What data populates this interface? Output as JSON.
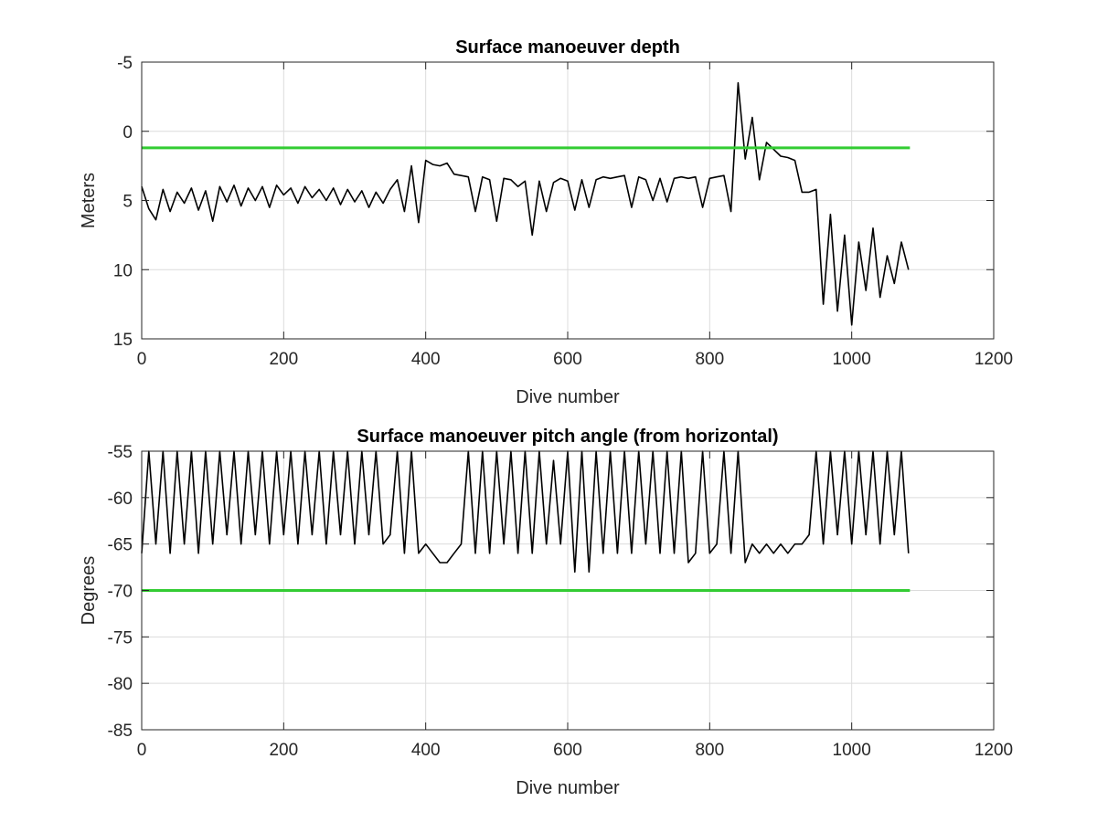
{
  "chart_data": [
    {
      "type": "line",
      "title": "Surface manoeuver depth",
      "xlabel": "Dive number",
      "ylabel": "Meters",
      "xlim": [
        0,
        1200
      ],
      "ylim": [
        -5,
        15
      ],
      "y_reversed": true,
      "xticks": [
        0,
        200,
        400,
        600,
        800,
        1000,
        1200
      ],
      "yticks": [
        -5,
        0,
        5,
        10,
        15
      ],
      "grid": true,
      "limit_line": {
        "y": 1.2,
        "x_range": [
          0,
          1082
        ],
        "color": "#33cc33"
      },
      "series": [
        {
          "color": "#000000",
          "x": [
            0,
            10,
            20,
            30,
            40,
            50,
            60,
            70,
            80,
            90,
            100,
            110,
            120,
            130,
            140,
            150,
            160,
            170,
            180,
            190,
            200,
            210,
            220,
            230,
            240,
            250,
            260,
            270,
            280,
            290,
            300,
            310,
            320,
            330,
            340,
            350,
            360,
            370,
            380,
            390,
            400,
            410,
            420,
            430,
            440,
            450,
            460,
            470,
            480,
            490,
            500,
            510,
            520,
            530,
            540,
            550,
            560,
            570,
            580,
            590,
            600,
            610,
            620,
            630,
            640,
            650,
            660,
            670,
            680,
            690,
            700,
            710,
            720,
            730,
            740,
            750,
            760,
            770,
            780,
            790,
            800,
            810,
            820,
            830,
            840,
            850,
            860,
            870,
            880,
            890,
            900,
            910,
            920,
            930,
            940,
            950,
            960,
            970,
            980,
            990,
            1000,
            1010,
            1020,
            1030,
            1040,
            1050,
            1060,
            1070,
            1080
          ],
          "y": [
            4.0,
            5.6,
            6.4,
            4.2,
            5.8,
            4.4,
            5.2,
            4.1,
            5.7,
            4.3,
            6.5,
            4.0,
            5.1,
            3.9,
            5.4,
            4.1,
            5.0,
            4.0,
            5.5,
            3.9,
            4.6,
            4.1,
            5.2,
            4.0,
            4.8,
            4.2,
            5.0,
            4.1,
            5.3,
            4.2,
            5.1,
            4.3,
            5.5,
            4.4,
            5.2,
            4.2,
            3.5,
            5.8,
            2.5,
            6.6,
            2.1,
            2.4,
            2.5,
            2.3,
            3.1,
            3.2,
            3.3,
            5.8,
            3.3,
            3.5,
            6.5,
            3.4,
            3.5,
            4.0,
            3.6,
            7.5,
            3.6,
            5.8,
            3.7,
            3.4,
            3.6,
            5.7,
            3.5,
            5.5,
            3.5,
            3.3,
            3.4,
            3.3,
            3.2,
            5.5,
            3.3,
            3.5,
            5.0,
            3.4,
            5.1,
            3.4,
            3.3,
            3.4,
            3.3,
            5.5,
            3.4,
            3.3,
            3.2,
            5.8,
            -3.5,
            2.0,
            -1.0,
            3.5,
            0.8,
            1.3,
            1.8,
            1.9,
            2.1,
            4.4,
            4.4,
            4.2,
            12.5,
            6.0,
            13.0,
            7.5,
            14.0,
            8.0,
            11.5,
            7.0,
            12.0,
            9.0,
            11.0,
            8.0,
            10.0
          ]
        }
      ]
    },
    {
      "type": "line",
      "title": "Surface manoeuver pitch angle (from horizontal)",
      "xlabel": "Dive number",
      "ylabel": "Degrees",
      "xlim": [
        0,
        1200
      ],
      "ylim": [
        -85,
        -55
      ],
      "xticks": [
        0,
        200,
        400,
        600,
        800,
        1000,
        1200
      ],
      "yticks": [
        -85,
        -80,
        -75,
        -70,
        -65,
        -60,
        -55
      ],
      "grid": true,
      "limit_line": {
        "y": -70,
        "x_range": [
          0,
          1082
        ],
        "color": "#33cc33"
      },
      "series": [
        {
          "color": "#000000",
          "x": [
            0,
            10,
            20,
            30,
            40,
            50,
            60,
            70,
            80,
            90,
            100,
            110,
            120,
            130,
            140,
            150,
            160,
            170,
            180,
            190,
            200,
            210,
            220,
            230,
            240,
            250,
            260,
            270,
            280,
            290,
            300,
            310,
            320,
            330,
            340,
            350,
            360,
            370,
            380,
            390,
            400,
            410,
            420,
            430,
            440,
            450,
            460,
            470,
            480,
            490,
            500,
            510,
            520,
            530,
            540,
            550,
            560,
            570,
            580,
            590,
            600,
            610,
            620,
            630,
            640,
            650,
            660,
            670,
            680,
            690,
            700,
            710,
            720,
            730,
            740,
            750,
            760,
            770,
            780,
            790,
            800,
            810,
            820,
            830,
            840,
            850,
            860,
            870,
            880,
            890,
            900,
            910,
            920,
            930,
            940,
            950,
            960,
            970,
            980,
            990,
            1000,
            1010,
            1020,
            1030,
            1040,
            1050,
            1060,
            1070,
            1080
          ],
          "y": [
            -66,
            -55,
            -65,
            -55,
            -66,
            -55,
            -65,
            -55,
            -66,
            -55,
            -65,
            -55,
            -64,
            -55,
            -65,
            -55,
            -64,
            -55,
            -65,
            -55,
            -64,
            -55,
            -65,
            -55,
            -64,
            -55,
            -65,
            -55,
            -64,
            -55,
            -65,
            -55,
            -64,
            -55,
            -65,
            -64,
            -55,
            -66,
            -55,
            -66,
            -65,
            -66,
            -67,
            -67,
            -66,
            -65,
            -55,
            -66,
            -55,
            -66,
            -55,
            -65,
            -55,
            -66,
            -55,
            -66,
            -55,
            -65,
            -56,
            -65,
            -55,
            -68,
            -55,
            -68,
            -55,
            -66,
            -55,
            -66,
            -55,
            -66,
            -55,
            -65,
            -55,
            -66,
            -55,
            -66,
            -55,
            -67,
            -66,
            -55,
            -66,
            -65,
            -55,
            -66,
            -55,
            -67,
            -65,
            -66,
            -65,
            -66,
            -65,
            -66,
            -65,
            -65,
            -64,
            -55,
            -65,
            -55,
            -64,
            -55,
            -65,
            -55,
            -64,
            -55,
            -65,
            -55,
            -64,
            -55,
            -66
          ]
        }
      ]
    }
  ]
}
